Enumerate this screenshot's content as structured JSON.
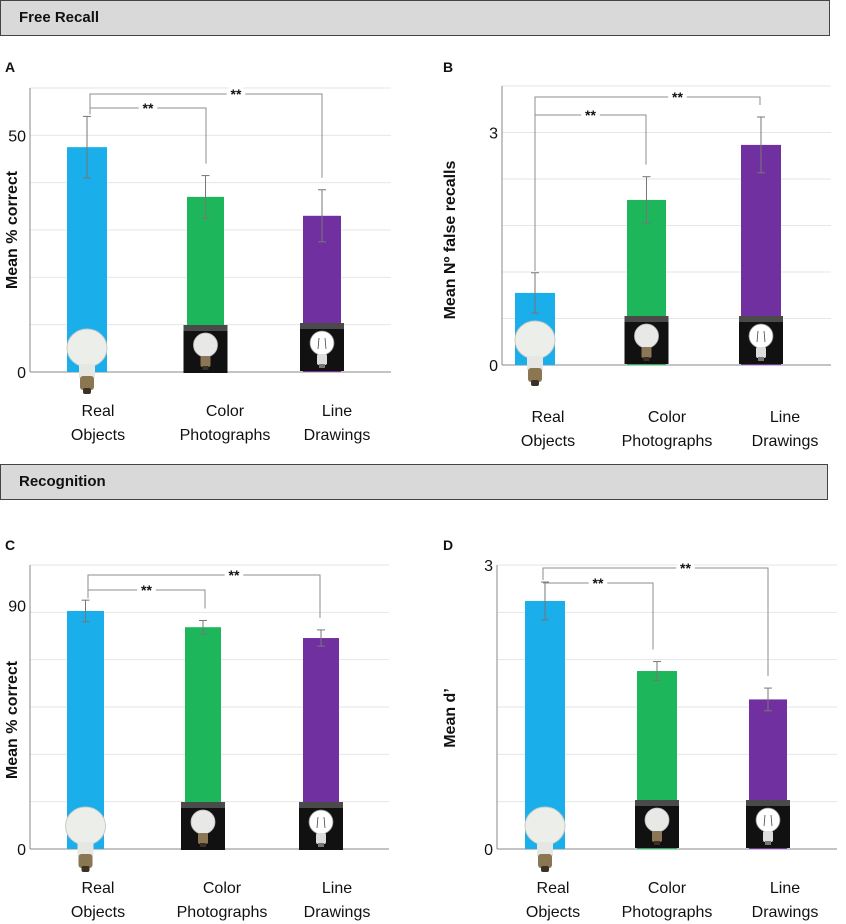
{
  "sections": {
    "free_recall": "Free Recall",
    "recognition": "Recognition"
  },
  "colors": {
    "real": "#1aaeea",
    "color": "#1eb65a",
    "line": "#7030a0",
    "grid": "#e6e6e6",
    "axis": "#888888",
    "bracket": "#8c8c8c"
  },
  "chart_data": [
    {
      "panel": "A",
      "type": "bar",
      "title": "Free Recall",
      "ylabel": "Mean % correct",
      "xlabel": "",
      "ylim": [
        0,
        60
      ],
      "ytick_labels": [
        0,
        50
      ],
      "grid": true,
      "categories": [
        "Real\nObjects",
        "Color\nPhotographs",
        "Line\nDrawings"
      ],
      "values": [
        47.5,
        37,
        33
      ],
      "errors": [
        6.5,
        4.5,
        5.5
      ],
      "significance": [
        {
          "from": 0,
          "to": 1,
          "label": "**"
        },
        {
          "from": 0,
          "to": 2,
          "label": "**"
        }
      ]
    },
    {
      "panel": "B",
      "type": "bar",
      "title": "Free Recall",
      "ylabel": "Mean Nº false recalls",
      "xlabel": "",
      "ylim": [
        0,
        3.6
      ],
      "ytick_labels": [
        0,
        3
      ],
      "grid": true,
      "categories": [
        "Real\nObjects",
        "Color\nPhotographs",
        "Line\nDrawings"
      ],
      "values": [
        0.93,
        2.13,
        2.84
      ],
      "errors": [
        0.26,
        0.3,
        0.36
      ],
      "significance": [
        {
          "from": 0,
          "to": 1,
          "label": "**"
        },
        {
          "from": 0,
          "to": 2,
          "label": "**"
        }
      ]
    },
    {
      "panel": "C",
      "type": "bar",
      "title": "Recognition",
      "ylabel": "Mean % correct",
      "xlabel": "",
      "ylim": [
        0,
        105
      ],
      "ytick_labels": [
        0,
        90
      ],
      "grid": true,
      "categories": [
        "Real\nObjects",
        "Color\nPhotographs",
        "Line\nDrawings"
      ],
      "values": [
        88,
        82,
        78
      ],
      "errors": [
        4,
        2.5,
        3
      ],
      "significance": [
        {
          "from": 0,
          "to": 1,
          "label": "**"
        },
        {
          "from": 0,
          "to": 2,
          "label": "**"
        }
      ]
    },
    {
      "panel": "D",
      "type": "bar",
      "title": "Recognition",
      "ylabel": "Mean d’",
      "xlabel": "",
      "ylim": [
        0,
        3.0
      ],
      "ytick_labels": [
        0,
        3
      ],
      "grid": true,
      "categories": [
        "Real\nObjects",
        "Color\nPhotographs",
        "Line\nDrawings"
      ],
      "values": [
        2.62,
        1.88,
        1.58
      ],
      "errors": [
        0.2,
        0.1,
        0.12
      ],
      "significance": [
        {
          "from": 0,
          "to": 1,
          "label": "**"
        },
        {
          "from": 0,
          "to": 2,
          "label": "**"
        }
      ]
    }
  ]
}
